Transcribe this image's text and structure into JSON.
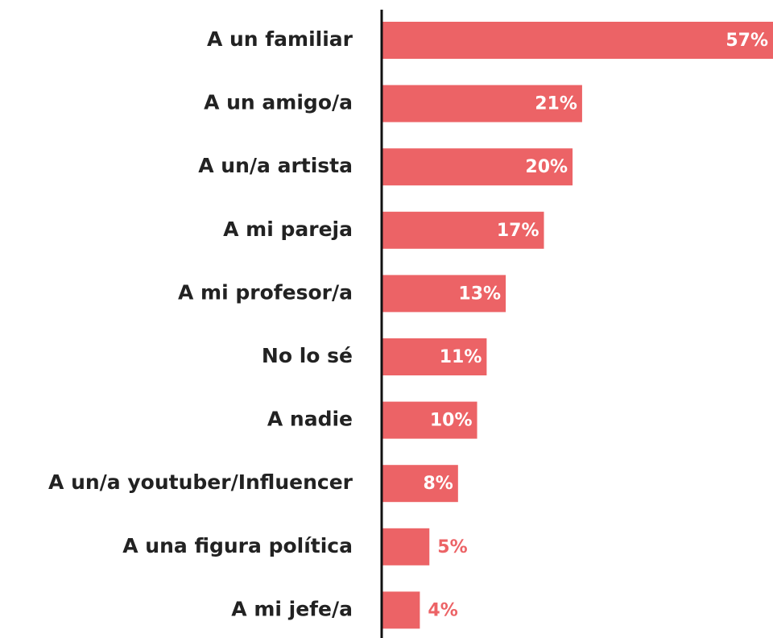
{
  "chart_data": {
    "type": "bar",
    "orientation": "horizontal",
    "categories": [
      "A un familiar",
      "A un amigo/a",
      "A un/a artista",
      "A mi pareja",
      "A mi profesor/a",
      "No lo sé",
      "A nadie",
      "A un/a youtuber/Influencer",
      "A una figura política",
      "A mi jefe/a"
    ],
    "values": [
      57,
      21,
      20,
      17,
      13,
      11,
      10,
      8,
      5,
      4
    ],
    "value_labels": [
      "57%",
      "21%",
      "20%",
      "17%",
      "13%",
      "11%",
      "10%",
      "8%",
      "5%",
      "4%"
    ],
    "color": "#ec6366",
    "xlim": [
      0,
      41
    ]
  }
}
